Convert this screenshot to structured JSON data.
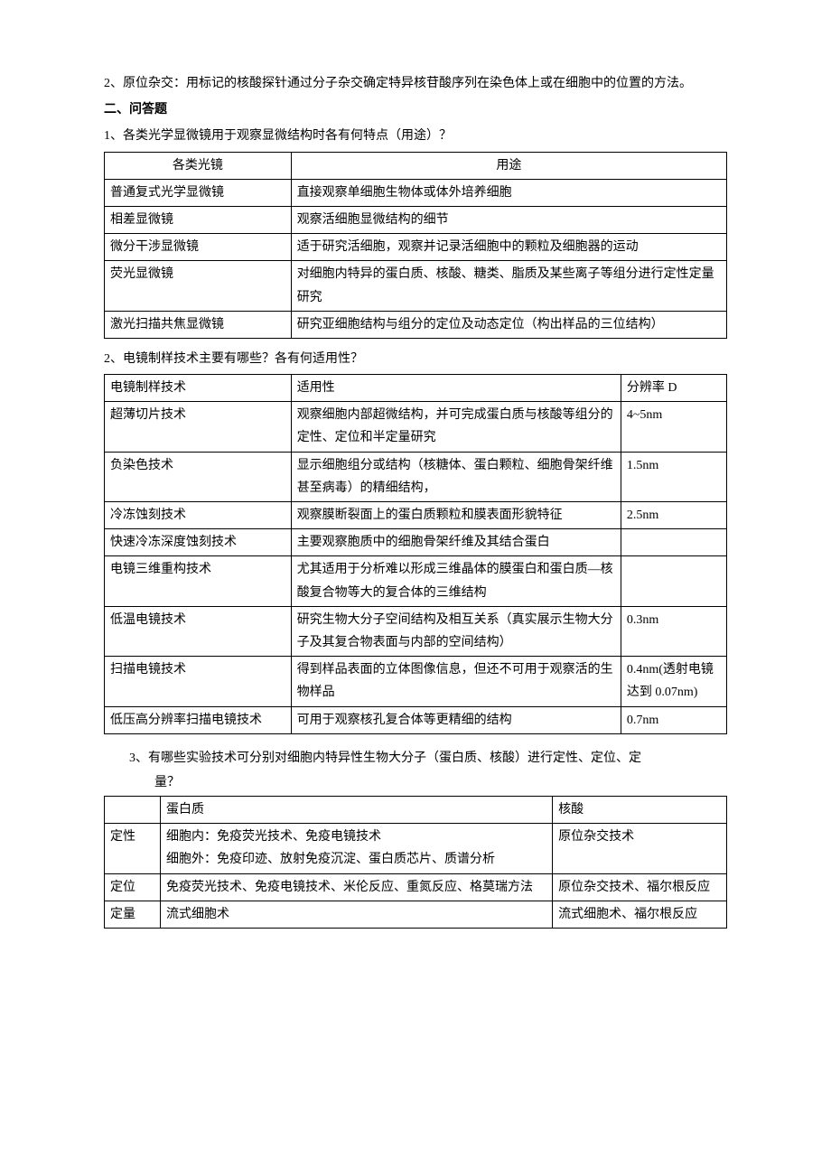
{
  "intro": {
    "p1": "2、原位杂交：用标记的核酸探针通过分子杂交确定特异核苷酸序列在染色体上或在细胞中的位置的方法。",
    "heading": "二、问答题",
    "q1": "1、各类光学显微镜用于观察显微结构时各有何特点（用途）？"
  },
  "table1": {
    "header": {
      "c1": "各类光镜",
      "c2": "用途"
    },
    "rows": [
      {
        "c1": "普通复式光学显微镜",
        "c2": "直接观察单细胞生物体或体外培养细胞"
      },
      {
        "c1": "相差显微镜",
        "c2": "观察活细胞显微结构的细节"
      },
      {
        "c1": "微分干涉显微镜",
        "c2": "适于研究活细胞，观察并记录活细胞中的颗粒及细胞器的运动"
      },
      {
        "c1": "荧光显微镜",
        "c2": "对细胞内特异的蛋白质、核酸、糖类、脂质及某些离子等组分进行定性定量研究"
      },
      {
        "c1": "激光扫描共焦显微镜",
        "c2": "研究亚细胞结构与组分的定位及动态定位（构出样品的三位结构）"
      }
    ]
  },
  "q2": "2、电镜制样技术主要有哪些？各有何适用性？",
  "table2": {
    "header": {
      "c1": "电镜制样技术",
      "c2": "适用性",
      "c3": "分辨率 D"
    },
    "rows": [
      {
        "c1": "超薄切片技术",
        "c2": "观察细胞内部超微结构，并可完成蛋白质与核酸等组分的定性、定位和半定量研究",
        "c3": "4~5nm"
      },
      {
        "c1": "负染色技术",
        "c2": "显示细胞组分或结构（核糖体、蛋白颗粒、细胞骨架纤维甚至病毒）的精细结构，",
        "c3": "1.5nm"
      },
      {
        "c1": "冷冻蚀刻技术",
        "c2": "观察膜断裂面上的蛋白质颗粒和膜表面形貌特征",
        "c3": "2.5nm"
      },
      {
        "c1": "快速冷冻深度蚀刻技术",
        "c2": "主要观察胞质中的细胞骨架纤维及其结合蛋白",
        "c3": ""
      },
      {
        "c1": "电镜三维重构技术",
        "c2": "尤其适用于分析难以形成三维晶体的膜蛋白和蛋白质—核酸复合物等大的复合体的三维结构",
        "c3": ""
      },
      {
        "c1": "低温电镜技术",
        "c2": "研究生物大分子空间结构及相互关系（真实展示生物大分子及其复合物表面与内部的空间结构）",
        "c3": "0.3nm"
      },
      {
        "c1": "扫描电镜技术",
        "c2": "得到样品表面的立体图像信息，但还不可用于观察活的生物样品",
        "c3": "0.4nm(透射电镜达到 0.07nm)"
      },
      {
        "c1": "低压高分辨率扫描电镜技术",
        "c2": "可用于观察核孔复合体等更精细的结构",
        "c3": "0.7nm"
      }
    ]
  },
  "q3": {
    "line1": "3、有哪些实验技术可分别对细胞内特异性生物大分子（蛋白质、核酸）进行定性、定位、定",
    "line2": "量？"
  },
  "table3": {
    "header": {
      "c1": "",
      "c2": "蛋白质",
      "c3": "核酸"
    },
    "rows": [
      {
        "c1": "定性",
        "c2": "细胞内：免疫荧光技术、免疫电镜技术\n细胞外：免疫印迹、放射免疫沉淀、蛋白质芯片、质谱分析",
        "c3": "原位杂交技术"
      },
      {
        "c1": "定位",
        "c2": "免疫荧光技术、免疫电镜技术、米伦反应、重氮反应、格莫瑞方法",
        "c3": "原位杂交技术、福尔根反应"
      },
      {
        "c1": "定量",
        "c2": "流式细胞术",
        "c3": "流式细胞术、福尔根反应"
      }
    ]
  }
}
